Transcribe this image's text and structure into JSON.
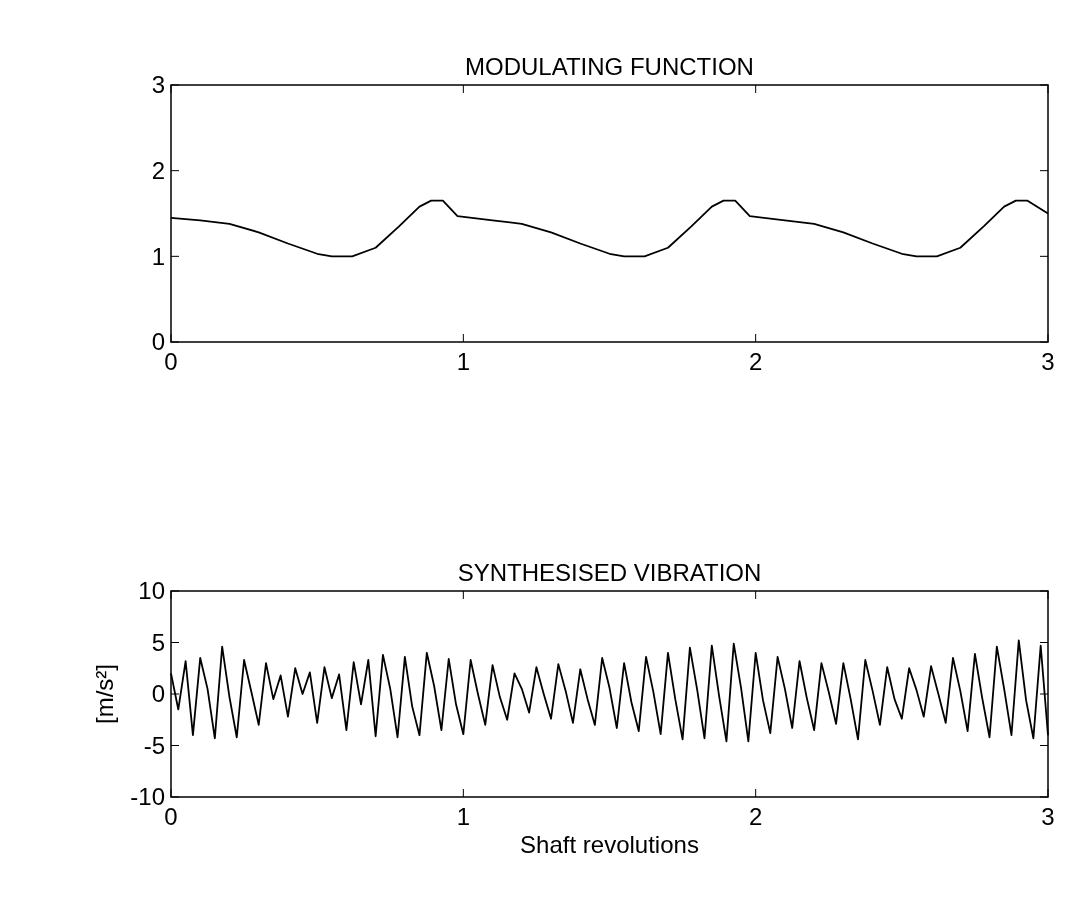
{
  "chart_data": [
    {
      "type": "line",
      "title": "MODULATING FUNCTION",
      "color": "#000000",
      "xlim": [
        0,
        3
      ],
      "xticks": [
        0,
        1,
        2,
        3
      ],
      "ylim": [
        0,
        3
      ],
      "yticks": [
        0,
        1,
        2,
        3
      ],
      "x": [
        0,
        0.1,
        0.2,
        0.3,
        0.4,
        0.5,
        0.55,
        0.62,
        0.7,
        0.78,
        0.85,
        0.89,
        0.93,
        0.98,
        1.1,
        1.2,
        1.3,
        1.4,
        1.5,
        1.55,
        1.62,
        1.7,
        1.78,
        1.85,
        1.89,
        1.93,
        1.98,
        2.1,
        2.2,
        2.3,
        2.4,
        2.5,
        2.55,
        2.62,
        2.7,
        2.78,
        2.85,
        2.89,
        2.93,
        3.0
      ],
      "values": [
        1.45,
        1.42,
        1.38,
        1.28,
        1.15,
        1.03,
        1.0,
        1.0,
        1.1,
        1.35,
        1.58,
        1.65,
        1.65,
        1.47,
        1.42,
        1.38,
        1.28,
        1.15,
        1.03,
        1.0,
        1.0,
        1.1,
        1.35,
        1.58,
        1.65,
        1.65,
        1.47,
        1.42,
        1.38,
        1.28,
        1.15,
        1.03,
        1.0,
        1.0,
        1.1,
        1.35,
        1.58,
        1.65,
        1.65,
        1.5
      ]
    },
    {
      "type": "line",
      "title": "SYNTHESISED VIBRATION",
      "xlabel": "Shaft revolutions",
      "ylabel": "[m/s²]",
      "color": "#000000",
      "xlim": [
        0,
        3
      ],
      "xticks": [
        0,
        1,
        2,
        3
      ],
      "ylim": [
        -10,
        10
      ],
      "yticks": [
        -10,
        -5,
        0,
        5,
        10
      ],
      "x": [
        0,
        0.025,
        0.05,
        0.075,
        0.1,
        0.125,
        0.15,
        0.175,
        0.2,
        0.225,
        0.25,
        0.275,
        0.3,
        0.325,
        0.35,
        0.375,
        0.4,
        0.425,
        0.45,
        0.475,
        0.5,
        0.525,
        0.55,
        0.575,
        0.6,
        0.625,
        0.65,
        0.675,
        0.7,
        0.725,
        0.75,
        0.775,
        0.8,
        0.825,
        0.85,
        0.875,
        0.9,
        0.925,
        0.95,
        0.975,
        1.0,
        1.025,
        1.05,
        1.075,
        1.1,
        1.125,
        1.15,
        1.175,
        1.2,
        1.225,
        1.25,
        1.275,
        1.3,
        1.325,
        1.35,
        1.375,
        1.4,
        1.425,
        1.45,
        1.475,
        1.5,
        1.525,
        1.55,
        1.575,
        1.6,
        1.625,
        1.65,
        1.675,
        1.7,
        1.725,
        1.75,
        1.775,
        1.8,
        1.825,
        1.85,
        1.875,
        1.9,
        1.925,
        1.95,
        1.975,
        2.0,
        2.025,
        2.05,
        2.075,
        2.1,
        2.125,
        2.15,
        2.175,
        2.2,
        2.225,
        2.25,
        2.275,
        2.3,
        2.325,
        2.35,
        2.375,
        2.4,
        2.425,
        2.45,
        2.475,
        2.5,
        2.525,
        2.55,
        2.575,
        2.6,
        2.625,
        2.65,
        2.675,
        2.7,
        2.725,
        2.75,
        2.775,
        2.8,
        2.825,
        2.85,
        2.875,
        2.9,
        2.925,
        2.95,
        2.975,
        3.0
      ],
      "values": [
        2.0,
        -1.5,
        3.2,
        -4.0,
        3.5,
        0.5,
        -4.3,
        4.6,
        -0.3,
        -4.2,
        3.3,
        0.2,
        -3.0,
        3.0,
        -0.5,
        1.8,
        -2.2,
        2.5,
        0.0,
        2.1,
        -2.8,
        2.6,
        -0.4,
        1.9,
        -3.5,
        3.1,
        -1.0,
        3.3,
        -4.1,
        3.8,
        0.5,
        -4.2,
        3.6,
        -1.2,
        -4.0,
        4.0,
        0.8,
        -3.5,
        3.4,
        -1.0,
        -3.9,
        3.3,
        0.0,
        -3.0,
        2.8,
        -0.3,
        -2.5,
        2.0,
        0.5,
        -1.8,
        2.6,
        0.0,
        -2.4,
        2.9,
        0.3,
        -2.8,
        2.4,
        -0.5,
        -3.0,
        3.5,
        0.6,
        -3.3,
        3.0,
        -0.8,
        -3.6,
        3.6,
        0.2,
        -3.9,
        4.0,
        -0.5,
        -4.4,
        4.5,
        0.4,
        -4.3,
        4.7,
        -0.2,
        -4.6,
        4.9,
        0.6,
        -4.6,
        4.0,
        -0.6,
        -3.8,
        3.6,
        0.5,
        -3.3,
        3.2,
        -0.4,
        -3.5,
        3.0,
        0.2,
        -2.9,
        3.0,
        -0.5,
        -4.4,
        3.3,
        0.3,
        -3.0,
        2.6,
        -0.5,
        -2.4,
        2.5,
        0.4,
        -2.2,
        2.7,
        0.0,
        -2.8,
        3.5,
        0.3,
        -3.6,
        3.9,
        -0.4,
        -4.2,
        4.6,
        0.5,
        -4.0,
        5.2,
        -0.6,
        -4.3,
        4.7,
        -4.0
      ]
    }
  ]
}
